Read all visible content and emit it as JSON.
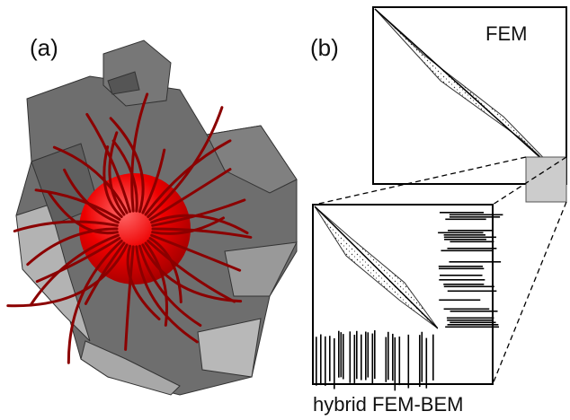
{
  "panels": [
    {
      "label": "(a)"
    },
    {
      "label": "(b)",
      "top_label": "FEM",
      "bottom_label": "hybrid FEM-BEM"
    }
  ]
}
